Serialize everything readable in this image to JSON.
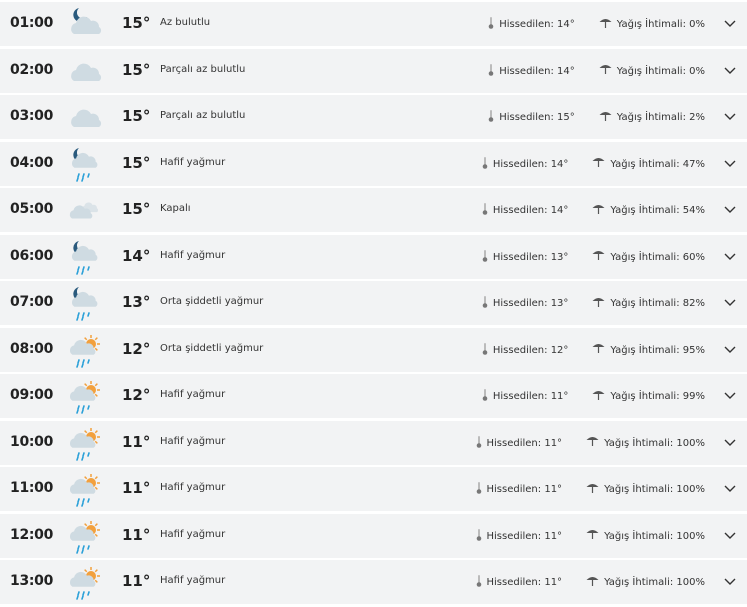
{
  "labels": {
    "feels": "Hissedilen:",
    "rain": "Yağış İhtimali:"
  },
  "colors": {
    "row_bg": "#f2f3f4",
    "cloud": "#cfdbe2",
    "moon": "#2a5a7d",
    "sun": "#f2a03d",
    "rain_drop": "#2aa0d8"
  },
  "rows": [
    {
      "time": "01:00",
      "icon": "moon-cloud-icon",
      "temp": "15°",
      "desc": "Az bulutlu",
      "feels": "14°",
      "rain": "0%"
    },
    {
      "time": "02:00",
      "icon": "cloud-icon",
      "temp": "15°",
      "desc": "Parçalı az bulutlu",
      "feels": "14°",
      "rain": "0%"
    },
    {
      "time": "03:00",
      "icon": "cloud-icon",
      "temp": "15°",
      "desc": "Parçalı az bulutlu",
      "feels": "15°",
      "rain": "2%"
    },
    {
      "time": "04:00",
      "icon": "moon-rain-icon",
      "temp": "15°",
      "desc": "Hafif yağmur",
      "feels": "14°",
      "rain": "47%"
    },
    {
      "time": "05:00",
      "icon": "overcast-icon",
      "temp": "15°",
      "desc": "Kapalı",
      "feels": "14°",
      "rain": "54%"
    },
    {
      "time": "06:00",
      "icon": "moon-rain-icon",
      "temp": "14°",
      "desc": "Hafif yağmur",
      "feels": "13°",
      "rain": "60%"
    },
    {
      "time": "07:00",
      "icon": "moon-rain-icon",
      "temp": "13°",
      "desc": "Orta şiddetli yağmur",
      "feels": "13°",
      "rain": "82%"
    },
    {
      "time": "08:00",
      "icon": "sun-rain-icon",
      "temp": "12°",
      "desc": "Orta şiddetli yağmur",
      "feels": "12°",
      "rain": "95%"
    },
    {
      "time": "09:00",
      "icon": "sun-rain-icon",
      "temp": "12°",
      "desc": "Hafif yağmur",
      "feels": "11°",
      "rain": "99%"
    },
    {
      "time": "10:00",
      "icon": "sun-rain-icon",
      "temp": "11°",
      "desc": "Hafif yağmur",
      "feels": "11°",
      "rain": "100%"
    },
    {
      "time": "11:00",
      "icon": "sun-rain-icon",
      "temp": "11°",
      "desc": "Hafif yağmur",
      "feels": "11°",
      "rain": "100%"
    },
    {
      "time": "12:00",
      "icon": "sun-rain-icon",
      "temp": "11°",
      "desc": "Hafif yağmur",
      "feels": "11°",
      "rain": "100%"
    },
    {
      "time": "13:00",
      "icon": "sun-rain-icon",
      "temp": "11°",
      "desc": "Hafif yağmur",
      "feels": "11°",
      "rain": "100%"
    }
  ]
}
